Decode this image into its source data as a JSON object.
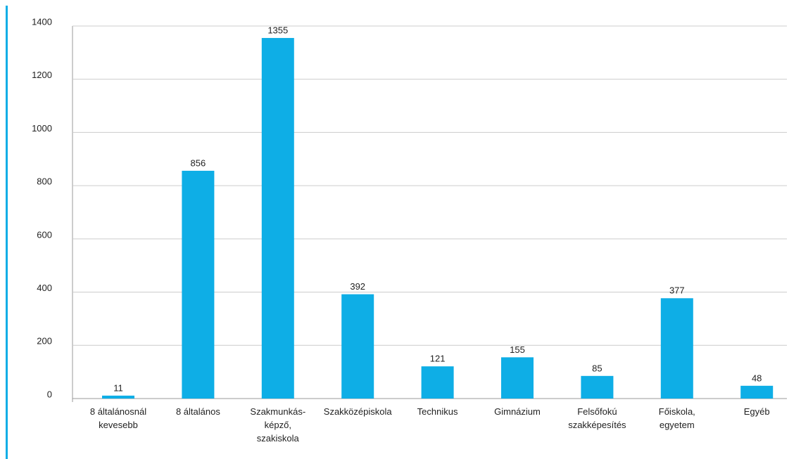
{
  "chart_data": {
    "type": "bar",
    "categories": [
      "8 általánosnál\nkevesebb",
      "8 általános",
      "Szakmunkás-\nképző,\nszakiskola",
      "Szakközépiskola",
      "Technikus",
      "Gimnázium",
      "Felsőfokú\nszakképesítés",
      "Főiskola,\negyetem",
      "Egyéb"
    ],
    "values": [
      11,
      856,
      1355,
      392,
      121,
      155,
      85,
      377,
      48
    ],
    "color": "#0eaee6",
    "ylim": [
      0,
      1400
    ],
    "yticks": [
      0,
      200,
      400,
      600,
      800,
      1000,
      1200,
      1400
    ],
    "grid": true
  }
}
